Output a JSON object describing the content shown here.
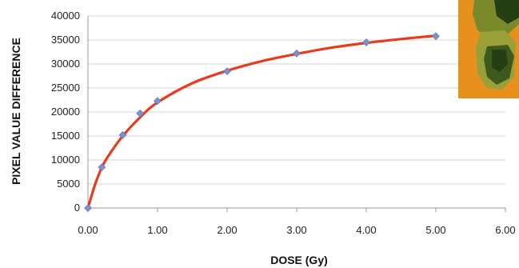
{
  "chart_data": {
    "type": "scatter",
    "title": "",
    "xlabel": "DOSE (Gy)",
    "ylabel": "PIXEL VALUE DIFFERENCE",
    "xlim": [
      0,
      6
    ],
    "ylim": [
      0,
      40000
    ],
    "grid": "horizontal",
    "x_ticks": [
      "0.00",
      "1.00",
      "2.00",
      "3.00",
      "4.00",
      "5.00",
      "6.00"
    ],
    "y_ticks": [
      "0",
      "5000",
      "10000",
      "15000",
      "20000",
      "25000",
      "30000",
      "35000",
      "40000"
    ],
    "series": [
      {
        "type": "scatter",
        "marker": "diamond",
        "color": "#7f8fcc",
        "x": [
          0,
          0.2,
          0.5,
          0.75,
          1.0,
          2.0,
          3.0,
          4.0,
          5.0
        ],
        "y": [
          0,
          8500,
          15200,
          19700,
          22300,
          28500,
          32200,
          34500,
          35800
        ]
      },
      {
        "type": "line",
        "color": "#e63c1e",
        "x": [
          0,
          0.1,
          0.2,
          0.3,
          0.5,
          0.75,
          1.0,
          1.5,
          2.0,
          2.5,
          3.0,
          3.5,
          4.0,
          4.5,
          5.0
        ],
        "y": [
          0,
          4800,
          8500,
          11000,
          15000,
          18900,
          22000,
          26000,
          28600,
          30600,
          32100,
          33400,
          34400,
          35200,
          35900
        ]
      }
    ]
  },
  "inset_image": {
    "colors": [
      "#e8901e",
      "#3d5a1c",
      "#7a8a2a",
      "#263f12",
      "#9aa038"
    ]
  }
}
